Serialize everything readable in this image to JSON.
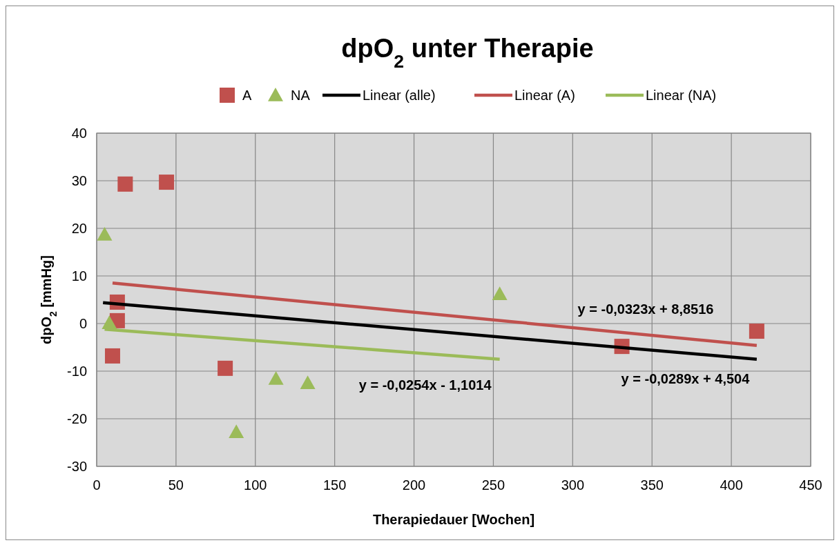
{
  "chart_data": {
    "type": "scatter",
    "title": "dpO$_{2}$ unter Therapie",
    "xlabel": "Therapiedauer [Wochen]",
    "ylabel": "dpO$_{2}$ [mmHg]",
    "xlim": [
      0,
      450
    ],
    "xticks": [
      0,
      50,
      100,
      150,
      200,
      250,
      300,
      350,
      400,
      450
    ],
    "ylim": [
      -30,
      40
    ],
    "yticks": [
      -30,
      -20,
      -10,
      0,
      10,
      20,
      30,
      40
    ],
    "grid": true,
    "legend": "top",
    "series": [
      {
        "name": "A",
        "type": "scatter",
        "marker": "square",
        "color": "#c0504d",
        "x": [
          18,
          44,
          13,
          13,
          10,
          81,
          331,
          416
        ],
        "values": [
          29.3,
          29.7,
          4.5,
          0.6,
          -6.8,
          -9.4,
          -4.8,
          -1.6
        ]
      },
      {
        "name": "NA",
        "type": "scatter",
        "marker": "triangle",
        "color": "#9bbb59",
        "x": [
          5,
          8,
          88,
          113,
          133,
          254
        ],
        "values": [
          18.7,
          0.1,
          -22.8,
          -11.6,
          -12.5,
          6.2
        ]
      },
      {
        "name": "Linear (alle)",
        "type": "line",
        "color": "#000000",
        "x": [
          4,
          416
        ],
        "values": [
          4.4,
          -7.5
        ]
      },
      {
        "name": "Linear (A)",
        "type": "line",
        "color": "#c0504d",
        "x": [
          10,
          416
        ],
        "values": [
          8.5,
          -4.6
        ]
      },
      {
        "name": "Linear (NA)",
        "type": "line",
        "color": "#9bbb59",
        "x": [
          5,
          254
        ],
        "values": [
          -1.2,
          -7.5
        ]
      }
    ],
    "annotations": [
      "y = -0,0323x + 8,8516",
      "y = -0,0289x + 4,504",
      "y = -0,0254x - 1,1014"
    ]
  }
}
